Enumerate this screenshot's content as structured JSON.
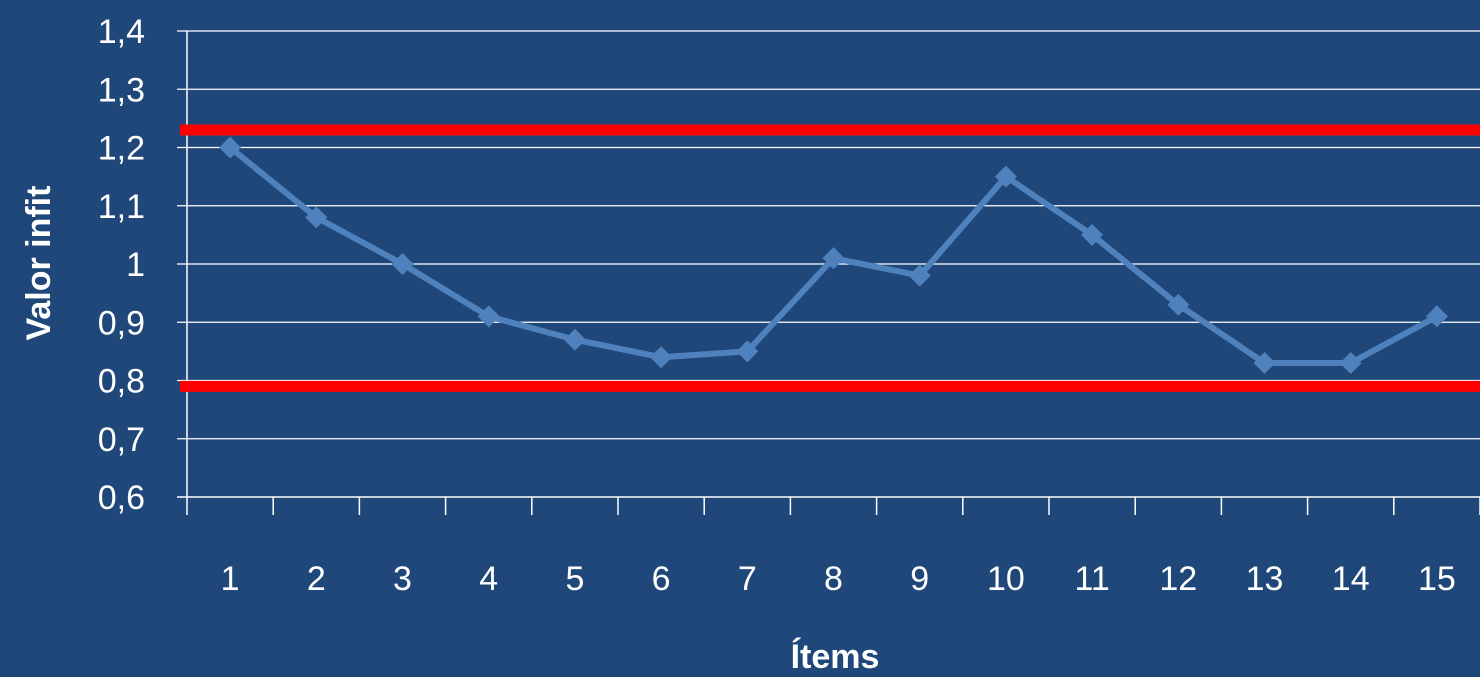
{
  "chart_data": {
    "type": "line",
    "title": "",
    "xlabel": "Ítems",
    "ylabel": "Valor infit",
    "categories": [
      "1",
      "2",
      "3",
      "4",
      "5",
      "6",
      "7",
      "8",
      "9",
      "10",
      "11",
      "12",
      "13",
      "14",
      "15"
    ],
    "series": [
      {
        "values": [
          1.2,
          1.08,
          1.0,
          0.91,
          0.87,
          0.84,
          0.85,
          1.01,
          0.98,
          1.15,
          1.05,
          0.93,
          0.83,
          0.83,
          0.91
        ]
      }
    ],
    "reference_lines": [
      {
        "y": 1.23
      },
      {
        "y": 0.79
      }
    ],
    "ylim": [
      0.6,
      1.4
    ],
    "yticks": [
      "0,6",
      "0,7",
      "0,8",
      "0,9",
      "1",
      "1,1",
      "1,2",
      "1,3",
      "1,4"
    ],
    "grid": true,
    "legend": "none"
  },
  "colors": {
    "background": "#1f4779",
    "line": "#4f81bd",
    "reference": "#ff0000",
    "grid": "#ffffff",
    "text": "#ffffff"
  }
}
